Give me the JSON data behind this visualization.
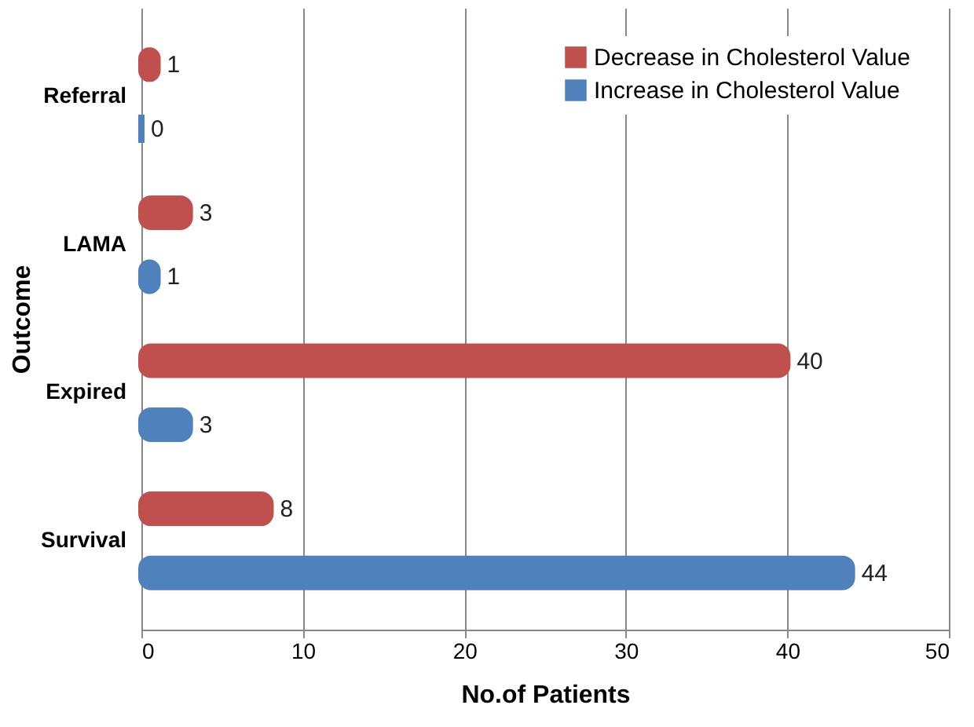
{
  "chart_data": {
    "type": "bar",
    "orientation": "horizontal",
    "xlabel": "No.of Patients",
    "ylabel": "Outcome",
    "categories": [
      "Referral",
      "LAMA",
      "Expired",
      "Survival"
    ],
    "series": [
      {
        "name": "Decrease in Cholesterol Value",
        "color": "#c0504d",
        "values": [
          1,
          3,
          40,
          8
        ]
      },
      {
        "name": "Increase in Cholesterol Value",
        "color": "#4f81bd",
        "values": [
          0,
          1,
          3,
          44
        ]
      }
    ],
    "xlim": [
      0,
      50
    ],
    "xticks": [
      0,
      10,
      20,
      30,
      40,
      50
    ],
    "grid": "x",
    "legend": "top right",
    "data_labels": true
  }
}
